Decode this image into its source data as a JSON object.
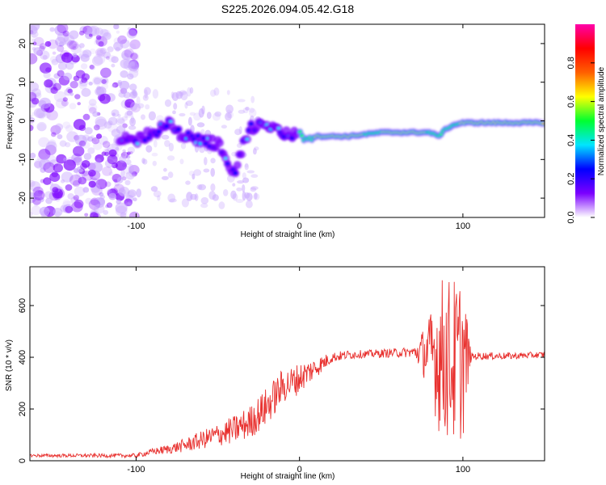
{
  "title": "S225.2026.094.05.42.G18",
  "chart_data": [
    {
      "type": "heatmap",
      "name": "spectrogram",
      "xlabel": "Height of straight line (km)",
      "ylabel": "Frequency (Hz)",
      "xlim": [
        -165,
        150
      ],
      "ylim": [
        -25,
        25
      ],
      "xticks": [
        -100,
        0,
        100
      ],
      "yticks": [
        -20,
        -10,
        0,
        10,
        20
      ],
      "xtick_labels": [
        "-100",
        "0",
        "100"
      ],
      "ytick_labels": [
        "-20",
        "-10",
        "0",
        "10",
        "20"
      ],
      "ridge": {
        "x": [
          -110,
          -100,
          -90,
          -80,
          -70,
          -60,
          -50,
          -45,
          -40,
          -35,
          -30,
          -25,
          -20,
          -10,
          0,
          10,
          20,
          30,
          40,
          50,
          60,
          70,
          80,
          85,
          90,
          95,
          100,
          110,
          120,
          130,
          140,
          150
        ],
        "y": [
          -5,
          -5,
          -3,
          -1,
          -4,
          -5,
          -6,
          -9,
          -14,
          -7,
          -2,
          -1,
          -2,
          -3,
          -4,
          -4,
          -4,
          -4,
          -3.5,
          -3,
          -3,
          -3,
          -3,
          -4,
          -2,
          -1,
          -0.5,
          -0.5,
          -0.5,
          -0.5,
          -0.5,
          -0.5
        ]
      }
    },
    {
      "type": "colorbar",
      "name": "colorbar",
      "label": "Normalized spectral amplitude",
      "range": [
        0,
        1
      ],
      "ticks": [
        0.0,
        0.2,
        0.4,
        0.6,
        0.8
      ],
      "tick_labels": [
        "0.0",
        "0.2",
        "0.4",
        "0.6",
        "0.8"
      ],
      "colormap": [
        "#ffffff",
        "#7b00ff",
        "#0000ff",
        "#00e5ff",
        "#00ff30",
        "#ffff00",
        "#ff6000",
        "#ff0000",
        "#ff00aa"
      ]
    },
    {
      "type": "line",
      "name": "snr",
      "xlabel": "Height of straight line (km)",
      "ylabel": "SNR (10 * v/v)",
      "xlim": [
        -165,
        150
      ],
      "ylim": [
        0,
        750
      ],
      "xticks": [
        -100,
        0,
        100
      ],
      "yticks": [
        0,
        200,
        400,
        600
      ],
      "xtick_labels": [
        "-100",
        "0",
        "100"
      ],
      "ytick_labels": [
        "0",
        "200",
        "400",
        "600"
      ],
      "color": "#e8312f",
      "envelope": {
        "x": [
          -165,
          -100,
          -90,
          -80,
          -70,
          -60,
          -50,
          -40,
          -30,
          -20,
          -15,
          -10,
          -5,
          0,
          10,
          20,
          30,
          50,
          70,
          80,
          85,
          90,
          95,
          100,
          110,
          130,
          150
        ],
        "y": [
          20,
          20,
          35,
          45,
          60,
          80,
          100,
          120,
          150,
          210,
          250,
          290,
          300,
          320,
          360,
          400,
          410,
          415,
          420,
          420,
          410,
          400,
          380,
          400,
          405,
          405,
          410
        ]
      },
      "noise_amplitude": {
        "x": [
          -165,
          -100,
          -80,
          -60,
          -40,
          -20,
          0,
          20,
          40,
          70,
          80,
          85,
          90,
          95,
          100,
          105,
          150
        ],
        "y": [
          6,
          8,
          18,
          35,
          55,
          75,
          60,
          20,
          15,
          20,
          150,
          300,
          320,
          330,
          320,
          15,
          12
        ]
      }
    }
  ]
}
